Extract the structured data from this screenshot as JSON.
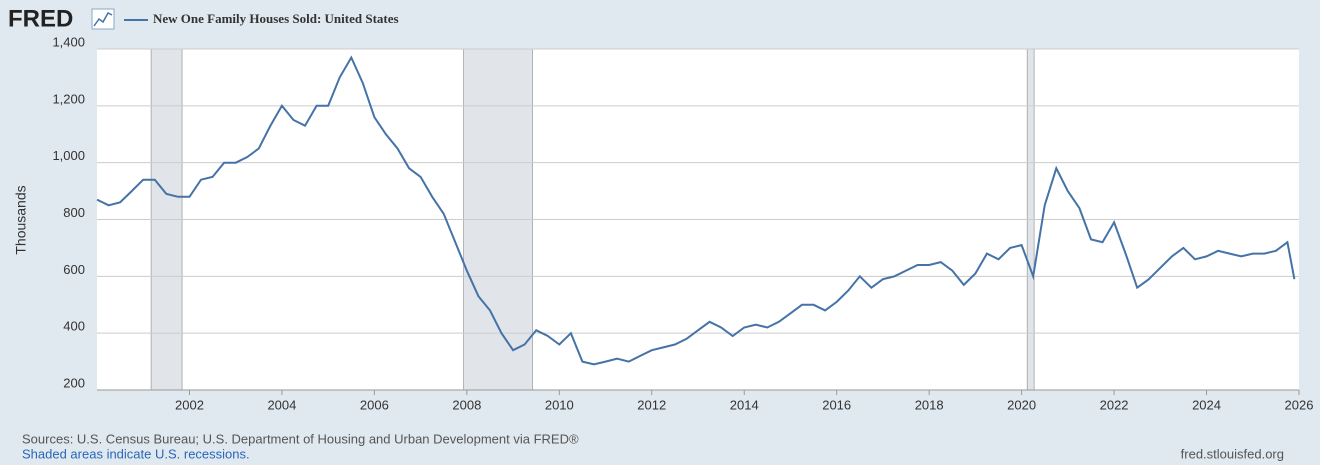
{
  "logo": "FRED",
  "chart_data": {
    "type": "line",
    "y_label": "Thousands",
    "x": [
      2000.0,
      2000.25,
      2000.5,
      2000.75,
      2001.0,
      2001.25,
      2001.5,
      2001.75,
      2002.0,
      2002.25,
      2002.5,
      2002.75,
      2003.0,
      2003.25,
      2003.5,
      2003.75,
      2004.0,
      2004.25,
      2004.5,
      2004.75,
      2005.0,
      2005.25,
      2005.5,
      2005.75,
      2006.0,
      2006.25,
      2006.5,
      2006.75,
      2007.0,
      2007.25,
      2007.5,
      2007.75,
      2008.0,
      2008.25,
      2008.5,
      2008.75,
      2009.0,
      2009.25,
      2009.5,
      2009.75,
      2010.0,
      2010.25,
      2010.5,
      2010.75,
      2011.0,
      2011.25,
      2011.5,
      2011.75,
      2012.0,
      2012.25,
      2012.5,
      2012.75,
      2013.0,
      2013.25,
      2013.5,
      2013.75,
      2014.0,
      2014.25,
      2014.5,
      2014.75,
      2015.0,
      2015.25,
      2015.5,
      2015.75,
      2016.0,
      2016.25,
      2016.5,
      2016.75,
      2017.0,
      2017.25,
      2017.5,
      2017.75,
      2018.0,
      2018.25,
      2018.5,
      2018.75,
      2019.0,
      2019.25,
      2019.5,
      2019.75,
      2020.0,
      2020.25,
      2020.5,
      2020.75,
      2021.0,
      2021.25,
      2021.5,
      2021.75,
      2022.0,
      2022.25,
      2022.5,
      2022.75,
      2023.0,
      2023.25,
      2023.5,
      2023.75,
      2024.0,
      2024.25,
      2024.5,
      2024.75,
      2025.0,
      2025.25,
      2025.5,
      2025.75,
      2025.9
    ],
    "series": [
      {
        "name": "New One Family Houses Sold: United States",
        "color": "#4572a7",
        "values": [
          870,
          850,
          860,
          900,
          940,
          940,
          890,
          880,
          880,
          940,
          950,
          1000,
          1000,
          1020,
          1050,
          1130,
          1200,
          1150,
          1130,
          1200,
          1200,
          1300,
          1370,
          1280,
          1160,
          1100,
          1050,
          980,
          950,
          880,
          820,
          720,
          620,
          530,
          480,
          400,
          340,
          360,
          410,
          390,
          360,
          400,
          300,
          290,
          300,
          310,
          300,
          320,
          340,
          350,
          360,
          380,
          410,
          440,
          420,
          390,
          420,
          430,
          420,
          440,
          470,
          500,
          500,
          480,
          510,
          550,
          600,
          560,
          590,
          600,
          620,
          640,
          640,
          650,
          620,
          570,
          610,
          680,
          660,
          700,
          710,
          600,
          850,
          980,
          900,
          840,
          730,
          720,
          790,
          680,
          560,
          590,
          630,
          670,
          700,
          660,
          670,
          690,
          680,
          670,
          680,
          680,
          690,
          720,
          590
        ]
      }
    ],
    "recessions": [
      [
        2001.17,
        2001.84
      ],
      [
        2007.93,
        2009.42
      ],
      [
        2020.12,
        2020.27
      ]
    ],
    "xlim": [
      2000,
      2026
    ],
    "xticks": [
      2002,
      2004,
      2006,
      2008,
      2010,
      2012,
      2014,
      2016,
      2018,
      2020,
      2022,
      2024,
      2026
    ],
    "ylim": [
      200,
      1400
    ],
    "yticks": [
      200,
      400,
      600,
      800,
      {
        "value": 1000,
        "label": "1,000"
      },
      {
        "value": 1200,
        "label": "1,200"
      },
      {
        "value": 1400,
        "label": "1,400"
      }
    ],
    "grid": true
  },
  "footer": {
    "sources": "Sources: U.S. Census Bureau; U.S. Department of Housing and Urban Development via FRED®",
    "note": "Shaded areas indicate U.S. recessions.",
    "url": "fred.stlouisfed.org"
  }
}
